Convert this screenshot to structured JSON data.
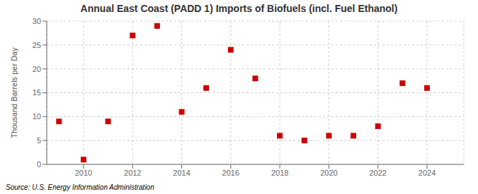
{
  "chart_data": {
    "type": "scatter",
    "title": "Annual East Coast (PADD 1) Imports of Biofuels (incl. Fuel Ethanol)",
    "ylabel": "Thousand Barrels per Day",
    "source": "Source: U.S. Energy Information Administration",
    "x": [
      2009,
      2010,
      2011,
      2012,
      2013,
      2014,
      2015,
      2016,
      2017,
      2018,
      2019,
      2020,
      2021,
      2022,
      2023,
      2024
    ],
    "values": [
      9.0,
      1.0,
      9.0,
      27.0,
      29.0,
      11.0,
      16.0,
      24.0,
      18.0,
      6.0,
      5.0,
      6.0,
      6.0,
      8.0,
      17.0,
      16.0
    ],
    "color": "#cc0000",
    "marker": "square",
    "xlim": [
      2008.5,
      2025.5
    ],
    "xticks": [
      2010,
      2012,
      2014,
      2016,
      2018,
      2020,
      2022,
      2024
    ],
    "ylim": [
      0,
      30
    ],
    "yticks": [
      0,
      5,
      10,
      15,
      20,
      25,
      30
    ],
    "grid": true
  }
}
